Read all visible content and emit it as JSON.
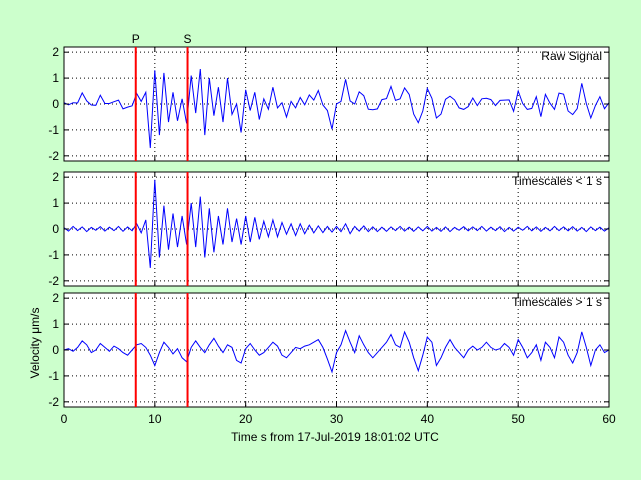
{
  "chart_data": {
    "type": "line",
    "xlabel": "Time s from 17-Jul-2019 18:01:02 UTC",
    "ylabel": "Velocity μm/s",
    "xlim": [
      0,
      60
    ],
    "ylim": [
      -2.2,
      2.2
    ],
    "x_ticks": [
      0,
      10,
      20,
      30,
      40,
      50,
      60
    ],
    "y_ticks": [
      -2,
      -1,
      0,
      1,
      2
    ],
    "grid": true,
    "grid_style": "dotted",
    "colors": {
      "background": "#ccffcc",
      "axes": "#ffffff",
      "trace": "#0000ff",
      "marker": "#ff0000"
    },
    "phase_markers": [
      {
        "label": "P",
        "x": 7.9
      },
      {
        "label": "S",
        "x": 13.6
      }
    ],
    "panels": [
      {
        "name": "Raw Signal",
        "series": "raw"
      },
      {
        "name": "Timescales < 1 s",
        "series": "high"
      },
      {
        "name": "Timescales > 1 s",
        "series": "low"
      }
    ],
    "series": {
      "low": {
        "x": [
          0,
          0.5,
          1,
          1.5,
          2,
          2.5,
          3,
          3.5,
          4,
          4.5,
          5,
          5.5,
          6,
          6.5,
          7,
          7.5,
          8,
          8.5,
          9,
          9.5,
          10,
          10.5,
          11,
          11.5,
          12,
          12.5,
          13,
          13.5,
          14,
          14.5,
          15,
          15.5,
          16,
          16.5,
          17,
          17.5,
          18,
          18.5,
          19,
          19.5,
          20,
          20.5,
          21,
          21.5,
          22,
          22.5,
          23,
          23.5,
          24,
          24.5,
          25,
          25.5,
          26,
          26.5,
          27,
          27.5,
          28,
          28.5,
          29,
          29.5,
          30,
          30.5,
          31,
          31.5,
          32,
          32.5,
          33,
          33.5,
          34,
          34.5,
          35,
          35.5,
          36,
          36.5,
          37,
          37.5,
          38,
          38.5,
          39,
          39.5,
          40,
          40.5,
          41,
          41.5,
          42,
          42.5,
          43,
          43.5,
          44,
          44.5,
          45,
          45.5,
          46,
          46.5,
          47,
          47.5,
          48,
          48.5,
          49,
          49.5,
          50,
          50.5,
          51,
          51.5,
          52,
          52.5,
          53,
          53.5,
          54,
          54.5,
          55,
          55.5,
          56,
          56.5,
          57,
          57.5,
          58,
          58.5,
          59,
          59.5,
          60
        ],
        "values": [
          0,
          0.05,
          -0.05,
          0.1,
          0.35,
          0.2,
          -0.1,
          0,
          0.25,
          0.1,
          -0.05,
          0.15,
          0.05,
          -0.1,
          -0.2,
          0,
          0.2,
          0.25,
          0.1,
          -0.2,
          -0.6,
          -0.1,
          0.3,
          0.1,
          -0.15,
          0.05,
          -0.3,
          -0.45,
          0.1,
          0.35,
          0.1,
          -0.1,
          0.2,
          0.45,
          0.15,
          -0.1,
          0.2,
          0.1,
          -0.4,
          -0.5,
          0.05,
          0.25,
          0,
          -0.2,
          -0.1,
          0.1,
          0.3,
          0.15,
          -0.2,
          -0.3,
          -0.1,
          0.1,
          0.05,
          0.15,
          0.2,
          0.3,
          0.4,
          0.1,
          -0.35,
          -0.85,
          -0.1,
          0.2,
          0.75,
          0.3,
          -0.1,
          0.55,
          0.2,
          -0.1,
          -0.3,
          -0.1,
          0.1,
          0.3,
          0.6,
          0.2,
          0.1,
          0.7,
          0.3,
          -0.3,
          -0.8,
          -0.2,
          0.5,
          0.3,
          -0.6,
          -0.3,
          0.1,
          0.4,
          0.1,
          -0.1,
          -0.3,
          0,
          0.15,
          0,
          0.1,
          0.3,
          0.1,
          0,
          0.05,
          0.25,
          0.1,
          -0.2,
          0.4,
          0.1,
          -0.3,
          -0.1,
          0.2,
          -0.4,
          0.3,
          0.1,
          -0.3,
          0.5,
          0.3,
          -0.2,
          -0.5,
          -0.1,
          0.7,
          0.1,
          -0.6,
          0,
          0.2,
          -0.1,
          0
        ]
      },
      "high": {
        "x": [
          0,
          0.5,
          1,
          1.5,
          2,
          2.5,
          3,
          3.5,
          4,
          4.5,
          5,
          5.5,
          6,
          6.5,
          7,
          7.5,
          8,
          8.5,
          9,
          9.5,
          10,
          10.5,
          11,
          11.5,
          12,
          12.5,
          13,
          13.5,
          14,
          14.5,
          15,
          15.5,
          16,
          16.5,
          17,
          17.5,
          18,
          18.5,
          19,
          19.5,
          20,
          20.5,
          21,
          21.5,
          22,
          22.5,
          23,
          23.5,
          24,
          24.5,
          25,
          25.5,
          26,
          26.5,
          27,
          27.5,
          28,
          28.5,
          29,
          29.5,
          30,
          30.5,
          31,
          31.5,
          32,
          32.5,
          33,
          33.5,
          34,
          34.5,
          35,
          35.5,
          36,
          36.5,
          37,
          37.5,
          38,
          38.5,
          39,
          39.5,
          40,
          40.5,
          41,
          41.5,
          42,
          42.5,
          43,
          43.5,
          44,
          44.5,
          45,
          45.5,
          46,
          46.5,
          47,
          47.5,
          48,
          48.5,
          49,
          49.5,
          50,
          50.5,
          51,
          51.5,
          52,
          52.5,
          53,
          53.5,
          54,
          54.5,
          55,
          55.5,
          56,
          56.5,
          57,
          57.5,
          58,
          58.5,
          59,
          59.5,
          60
        ],
        "values": [
          0.05,
          -0.08,
          0.1,
          -0.06,
          0.08,
          -0.1,
          0.06,
          -0.05,
          0.09,
          -0.08,
          0.07,
          -0.06,
          0.1,
          -0.09,
          0.08,
          -0.07,
          0.2,
          -0.15,
          0.35,
          -1.5,
          1.9,
          -1.1,
          0.9,
          -0.8,
          0.6,
          -0.7,
          0.5,
          -0.6,
          1.0,
          -0.7,
          1.25,
          -1.1,
          0.8,
          -0.9,
          0.5,
          -0.6,
          0.8,
          -0.5,
          0.4,
          -0.6,
          0.5,
          -0.5,
          0.45,
          -0.4,
          0.3,
          -0.3,
          0.35,
          -0.3,
          0.25,
          -0.2,
          0.2,
          -0.25,
          0.2,
          -0.18,
          0.15,
          -0.15,
          0.12,
          -0.14,
          0.1,
          -0.12,
          0.1,
          -0.1,
          0.2,
          -0.18,
          0.1,
          -0.08,
          0.12,
          -0.1,
          0.08,
          -0.1,
          0.07,
          -0.09,
          0.08,
          -0.06,
          0.1,
          -0.08,
          0.07,
          -0.09,
          0.08,
          -0.07,
          0.1,
          -0.08,
          0.06,
          -0.09,
          0.08,
          -0.1,
          0.06,
          -0.05,
          0.09,
          -0.07,
          0.08,
          -0.06,
          0.1,
          -0.08,
          0.07,
          -0.06,
          0.09,
          -0.1,
          0.06,
          -0.08,
          0.07,
          -0.05,
          0.1,
          -0.07,
          0.08,
          -0.09,
          0.06,
          -0.07,
          0.1,
          -0.06,
          0.08,
          -0.07,
          0.09,
          -0.08,
          0.06,
          -0.1,
          0.08,
          -0.06,
          0.07,
          -0.08,
          0.05
        ]
      },
      "raw": {
        "x": [
          0,
          0.5,
          1,
          1.5,
          2,
          2.5,
          3,
          3.5,
          4,
          4.5,
          5,
          5.5,
          6,
          6.5,
          7,
          7.5,
          8,
          8.5,
          9,
          9.5,
          10,
          10.5,
          11,
          11.5,
          12,
          12.5,
          13,
          13.5,
          14,
          14.5,
          15,
          15.5,
          16,
          16.5,
          17,
          17.5,
          18,
          18.5,
          19,
          19.5,
          20,
          20.5,
          21,
          21.5,
          22,
          22.5,
          23,
          23.5,
          24,
          24.5,
          25,
          25.5,
          26,
          26.5,
          27,
          27.5,
          28,
          28.5,
          29,
          29.5,
          30,
          30.5,
          31,
          31.5,
          32,
          32.5,
          33,
          33.5,
          34,
          34.5,
          35,
          35.5,
          36,
          36.5,
          37,
          37.5,
          38,
          38.5,
          39,
          39.5,
          40,
          40.5,
          41,
          41.5,
          42,
          42.5,
          43,
          43.5,
          44,
          44.5,
          45,
          45.5,
          46,
          46.5,
          47,
          47.5,
          48,
          48.5,
          49,
          49.5,
          50,
          50.5,
          51,
          51.5,
          52,
          52.5,
          53,
          53.5,
          54,
          54.5,
          55,
          55.5,
          56,
          56.5,
          57,
          57.5,
          58,
          58.5,
          59,
          59.5,
          60
        ],
        "values": [
          0.05,
          -0.03,
          0.05,
          0.04,
          0.43,
          0.12,
          -0.04,
          -0.05,
          0.34,
          0.02,
          0.02,
          0.09,
          0.15,
          -0.19,
          -0.12,
          -0.07,
          0.4,
          0.1,
          0.45,
          -1.7,
          1.3,
          -1.2,
          1.2,
          -0.7,
          0.45,
          -0.65,
          0.2,
          -0.75,
          1.1,
          -0.35,
          1.35,
          -1.2,
          1.0,
          -0.45,
          0.65,
          -0.7,
          1.0,
          -0.4,
          0.0,
          -1.1,
          0.55,
          -0.25,
          0.45,
          -0.6,
          0.2,
          -0.2,
          0.65,
          -0.15,
          0.05,
          -0.5,
          0.1,
          -0.15,
          0.25,
          -0.03,
          0.35,
          0.15,
          0.52,
          -0.04,
          -0.25,
          -0.97,
          0.0,
          0.1,
          0.95,
          0.12,
          0.0,
          0.47,
          0.32,
          -0.2,
          -0.22,
          -0.19,
          0.17,
          0.21,
          0.68,
          0.14,
          0.2,
          0.62,
          0.37,
          -0.39,
          -0.72,
          -0.27,
          0.6,
          0.22,
          -0.54,
          -0.39,
          0.18,
          0.3,
          0.16,
          -0.15,
          -0.21,
          -0.1,
          0.23,
          -0.06,
          0.2,
          0.22,
          0.17,
          -0.06,
          0.14,
          0.15,
          0.16,
          -0.28,
          0.5,
          0.02,
          -0.21,
          -0.17,
          0.28,
          -0.49,
          0.37,
          0.03,
          -0.21,
          0.42,
          0.38,
          -0.27,
          -0.41,
          -0.18,
          0.8,
          0.02,
          -0.54,
          -0.06,
          0.28,
          -0.18,
          0.05
        ]
      }
    }
  }
}
